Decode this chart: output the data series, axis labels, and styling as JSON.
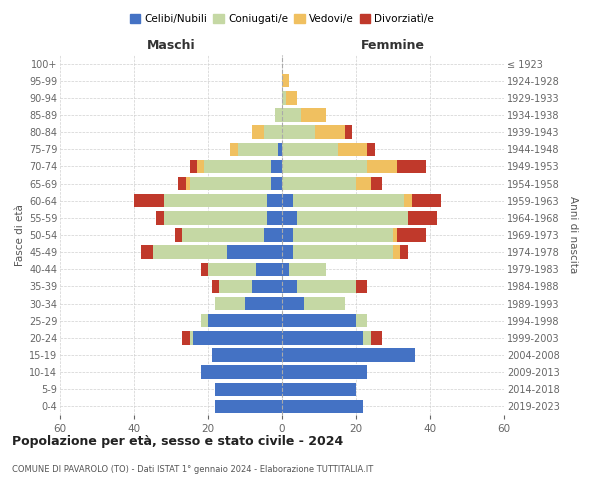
{
  "age_groups": [
    "0-4",
    "5-9",
    "10-14",
    "15-19",
    "20-24",
    "25-29",
    "30-34",
    "35-39",
    "40-44",
    "45-49",
    "50-54",
    "55-59",
    "60-64",
    "65-69",
    "70-74",
    "75-79",
    "80-84",
    "85-89",
    "90-94",
    "95-99",
    "100+"
  ],
  "birth_years": [
    "2019-2023",
    "2014-2018",
    "2009-2013",
    "2004-2008",
    "1999-2003",
    "1994-1998",
    "1989-1993",
    "1984-1988",
    "1979-1983",
    "1974-1978",
    "1969-1973",
    "1964-1968",
    "1959-1963",
    "1954-1958",
    "1949-1953",
    "1944-1948",
    "1939-1943",
    "1934-1938",
    "1929-1933",
    "1924-1928",
    "≤ 1923"
  ],
  "maschi": {
    "celibi": [
      18,
      18,
      22,
      19,
      24,
      20,
      10,
      8,
      7,
      15,
      5,
      4,
      4,
      3,
      3,
      1,
      0,
      0,
      0,
      0,
      0
    ],
    "coniugati": [
      0,
      0,
      0,
      0,
      1,
      2,
      8,
      9,
      13,
      20,
      22,
      28,
      28,
      22,
      18,
      11,
      5,
      2,
      0,
      0,
      0
    ],
    "vedovi": [
      0,
      0,
      0,
      0,
      0,
      0,
      0,
      0,
      0,
      0,
      0,
      0,
      0,
      1,
      2,
      2,
      3,
      0,
      0,
      0,
      0
    ],
    "divorziati": [
      0,
      0,
      0,
      0,
      2,
      0,
      0,
      2,
      2,
      3,
      2,
      2,
      8,
      2,
      2,
      0,
      0,
      0,
      0,
      0,
      0
    ]
  },
  "femmine": {
    "nubili": [
      22,
      20,
      23,
      36,
      22,
      20,
      6,
      4,
      2,
      3,
      3,
      4,
      3,
      0,
      0,
      0,
      0,
      0,
      0,
      0,
      0
    ],
    "coniugate": [
      0,
      0,
      0,
      0,
      2,
      3,
      11,
      16,
      10,
      27,
      27,
      30,
      30,
      20,
      23,
      15,
      9,
      5,
      1,
      0,
      0
    ],
    "vedove": [
      0,
      0,
      0,
      0,
      0,
      0,
      0,
      0,
      0,
      2,
      1,
      0,
      2,
      4,
      8,
      8,
      8,
      7,
      3,
      2,
      0
    ],
    "divorziate": [
      0,
      0,
      0,
      0,
      3,
      0,
      0,
      3,
      0,
      2,
      8,
      8,
      8,
      3,
      8,
      2,
      2,
      0,
      0,
      0,
      0
    ]
  },
  "color_celibi": "#4472c4",
  "color_coniugati": "#c5d8a4",
  "color_vedovi": "#f0c060",
  "color_divorziati": "#c0392b",
  "title": "Popolazione per età, sesso e stato civile - 2024",
  "subtitle": "COMUNE DI PAVAROLO (TO) - Dati ISTAT 1° gennaio 2024 - Elaborazione TUTTITALIA.IT",
  "xlabel_left": "Maschi",
  "xlabel_right": "Femmine",
  "ylabel_left": "Fasce di età",
  "ylabel_right": "Anni di nascita",
  "xlim": 60,
  "bg_color": "#ffffff",
  "grid_color": "#d0d0d0"
}
